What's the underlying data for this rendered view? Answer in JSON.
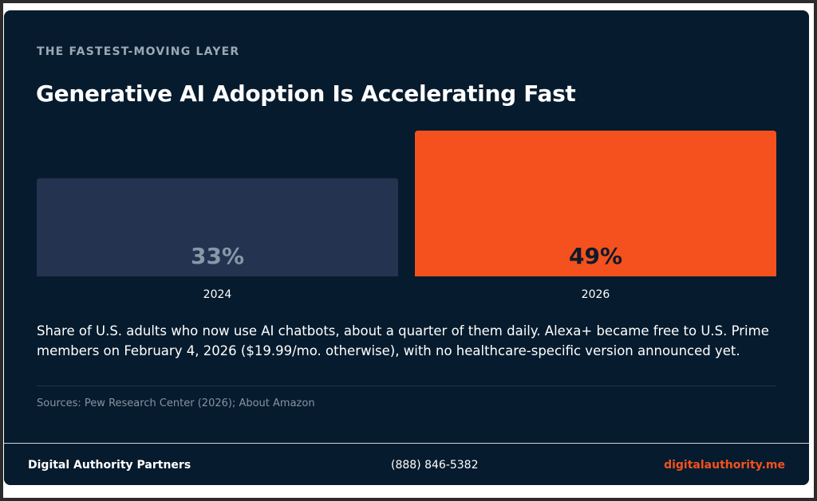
{
  "card": {
    "eyebrow": "THE FASTEST-MOVING LAYER",
    "title": "Generative AI Adoption Is Accelerating Fast",
    "description": "Share of U.S. adults who now use AI chatbots, about a quarter of them daily. Alexa+ became free to U.S. Prime members on February 4, 2026 ($19.99/mo. otherwise), with no healthcare-specific version announced yet.",
    "sources": "Sources: Pew Research Center (2026); About Amazon"
  },
  "footer": {
    "brand": "Digital Authority Partners",
    "phone": "(888) 846-5382",
    "site": "digitalauthority.me"
  },
  "colors": {
    "background": "#061b2d",
    "bar_muted": "#243350",
    "bar_muted_label": "#8a97a8",
    "bar_accent": "#f4511e",
    "bar_accent_label": "#0e1a2b",
    "category_label": "#ffffff"
  },
  "chart_data": {
    "type": "bar",
    "categories": [
      "2024",
      "2026"
    ],
    "values": [
      33,
      49
    ],
    "data_labels": [
      "33%",
      "49%"
    ],
    "ylim": [
      0,
      49
    ],
    "title": "",
    "xlabel": "",
    "ylabel": "",
    "grid": false
  }
}
